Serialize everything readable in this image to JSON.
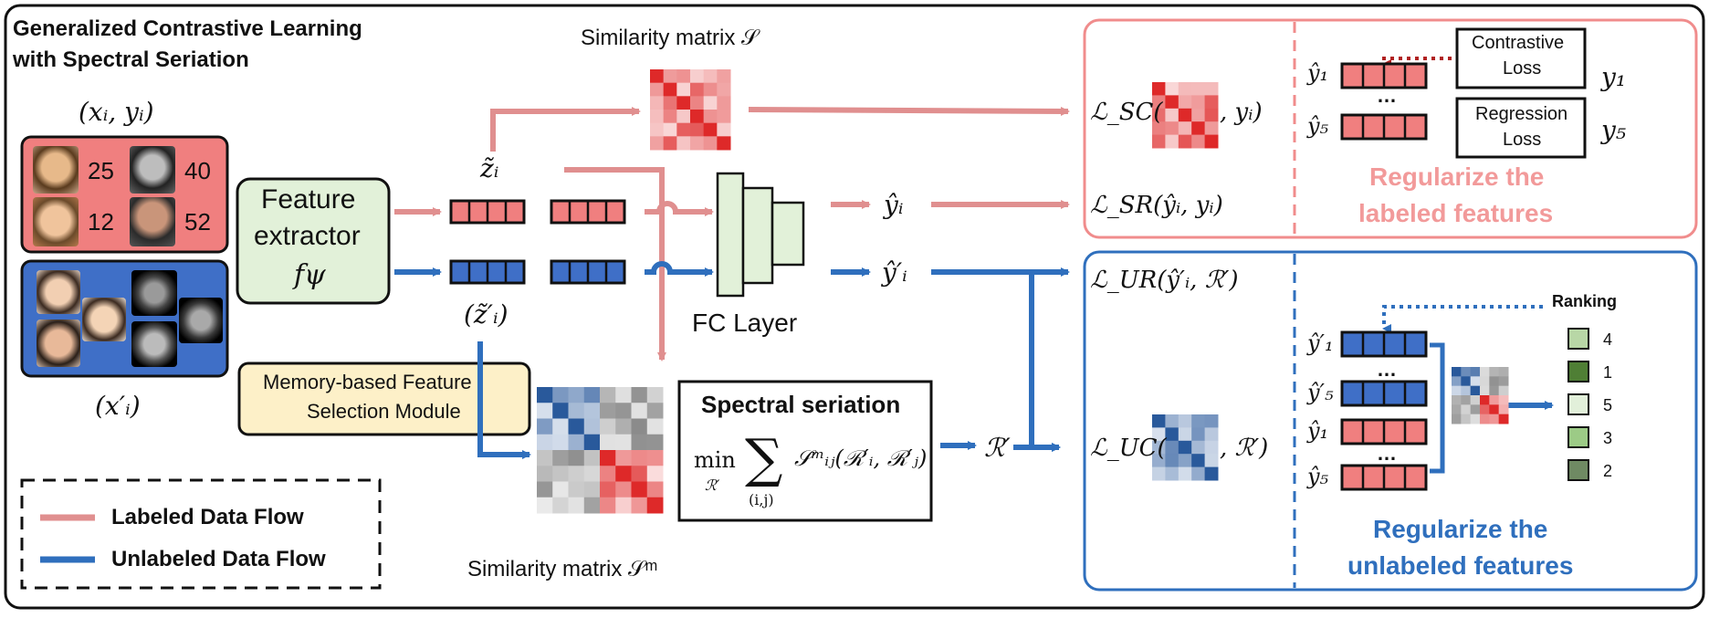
{
  "title": "Generalized Contrastive Learning with Spectral Seriation",
  "title_lines": [
    "Generalized Contrastive Learning",
    "with Spectral Seriation"
  ],
  "labeled_input": {
    "label": "(xᵢ, yᵢ)",
    "ages": [
      "25",
      "40",
      "12",
      "52"
    ]
  },
  "unlabeled_input": {
    "label": "(x′ᵢ)"
  },
  "feature_extractor": {
    "line1": "Feature",
    "line2": "extractor",
    "symbol": "fψ"
  },
  "features": {
    "labeled": "z̃ᵢ",
    "unlabeled": "(z̃′ᵢ)"
  },
  "similarity_top": "Similarity matrix 𝒮",
  "similarity_bottom": "Similarity matrix 𝒮ᵐ",
  "fc_layer": "FC Layer",
  "predictions": {
    "labeled": "ŷᵢ",
    "unlabeled": "ŷ′ᵢ"
  },
  "memory_module": {
    "line1": "Memory-based Feature",
    "line2": "Selection Module"
  },
  "spectral_seriation": {
    "title": "Spectral seriation",
    "min": "min",
    "min_sub": "ℛ′",
    "sum": "∑",
    "sum_sub": "(i,j)",
    "term": "𝒮ᵐᵢⱼ(ℛ′ᵢ, ℛ′ⱼ)"
  },
  "ranking_symbol": "ℛ′",
  "losses": {
    "sc_prefix": "ℒ_SC(",
    "sc_suffix": ", yᵢ)",
    "sr": "ℒ_SR(ŷᵢ, yᵢ)",
    "ur": "ℒ_UR(ŷ′ᵢ, ℛ′)",
    "uc_prefix": "ℒ_UC(",
    "uc_suffix": ", ℛ′)"
  },
  "labeled_panel": {
    "pred_top": "ŷ₁",
    "pred_bottom": "ŷ₅",
    "dots": "…",
    "contrastive_loss": [
      "Contrastive",
      "Loss"
    ],
    "regression_loss": [
      "Regression",
      "Loss"
    ],
    "target_top": "y₁",
    "target_bottom": "y₅",
    "caption": [
      "Regularize the",
      "labeled features"
    ]
  },
  "unlabeled_panel": {
    "ranking_label": "Ranking",
    "preds": [
      "ŷ′₁",
      "ŷ′₅",
      "ŷ₁",
      "ŷ₅"
    ],
    "dots": "…",
    "ranks": [
      "4",
      "1",
      "5",
      "3",
      "2"
    ],
    "caption": [
      "Regularize the",
      "unlabeled features"
    ]
  },
  "legend": {
    "labeled": "Labeled Data Flow",
    "unlabeled": "Unlabeled Data Flow"
  },
  "colors": {
    "labeled_flow": "#e08f8f",
    "unlabeled_flow": "#2f6fbd",
    "labeled_box": "#f07f7f",
    "unlabeled_box": "#3f6fc7",
    "feature_box_fill": "#e2f1d9",
    "memory_fill": "#fdf0c8",
    "labeled_caption": "#f29a9a",
    "unlabeled_caption": "#2f6fbd",
    "rank_colors": [
      "#b8d7a6",
      "#4f7f35",
      "#e2f0da",
      "#9ccb86",
      "#6f8a63"
    ]
  }
}
